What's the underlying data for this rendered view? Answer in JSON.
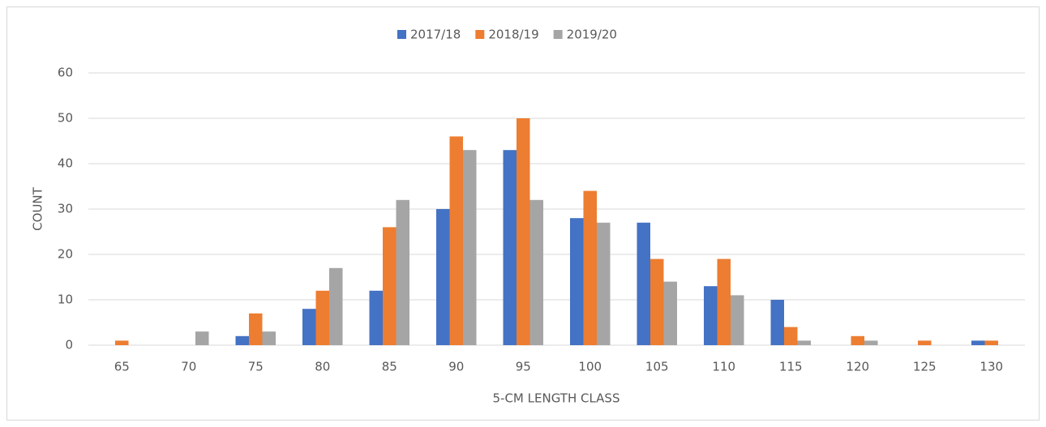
{
  "chart_data": {
    "type": "bar",
    "xlabel": "5-CM LENGTH CLASS",
    "ylabel": "COUNT",
    "categories": [
      "65",
      "70",
      "75",
      "80",
      "85",
      "90",
      "95",
      "100",
      "105",
      "110",
      "115",
      "120",
      "125",
      "130"
    ],
    "series": [
      {
        "name": "2017/18",
        "color": "#4472c4",
        "values": [
          0,
          0,
          2,
          8,
          12,
          30,
          43,
          28,
          27,
          13,
          10,
          0,
          0,
          1
        ]
      },
      {
        "name": "2018/19",
        "color": "#ed7d31",
        "values": [
          1,
          0,
          7,
          12,
          26,
          46,
          50,
          34,
          19,
          19,
          4,
          2,
          1,
          1
        ]
      },
      {
        "name": "2019/20",
        "color": "#a5a5a5",
        "values": [
          0,
          3,
          3,
          17,
          32,
          43,
          32,
          27,
          14,
          11,
          1,
          1,
          0,
          0
        ]
      }
    ],
    "ylim": [
      0,
      60
    ],
    "yticks": [
      0,
      10,
      20,
      30,
      40,
      50,
      60
    ],
    "grid": true,
    "legend": "top"
  }
}
